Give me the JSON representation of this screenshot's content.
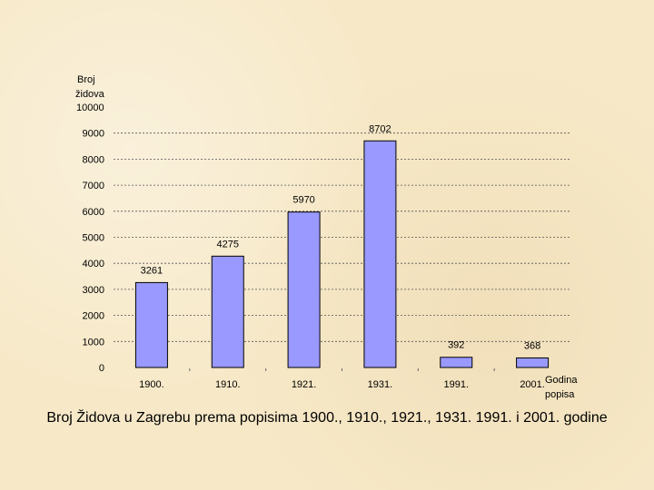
{
  "chart_data": {
    "type": "bar",
    "categories": [
      "1900.",
      "1910.",
      "1921.",
      "1931.",
      "1991.",
      "2001."
    ],
    "values": [
      3261,
      4275,
      5970,
      8702,
      392,
      368
    ],
    "data_labels": [
      "3261",
      "4275",
      "5970",
      "8702",
      "392",
      "368"
    ],
    "ylabel_lines": [
      "Broj",
      "židova",
      "10000"
    ],
    "xlabel_lines": [
      "Godina",
      "popisa"
    ],
    "y_ticks": [
      0,
      1000,
      2000,
      3000,
      4000,
      5000,
      6000,
      7000,
      8000,
      9000
    ],
    "ylim": [
      0,
      10000
    ],
    "grid": true,
    "bar_color": "#9999ff",
    "bar_edge_color": "#000000"
  },
  "caption": "Broj Židova u Zagrebu prema popisima 1900., 1910., 1921., 1931. 1991. i 2001. godine"
}
